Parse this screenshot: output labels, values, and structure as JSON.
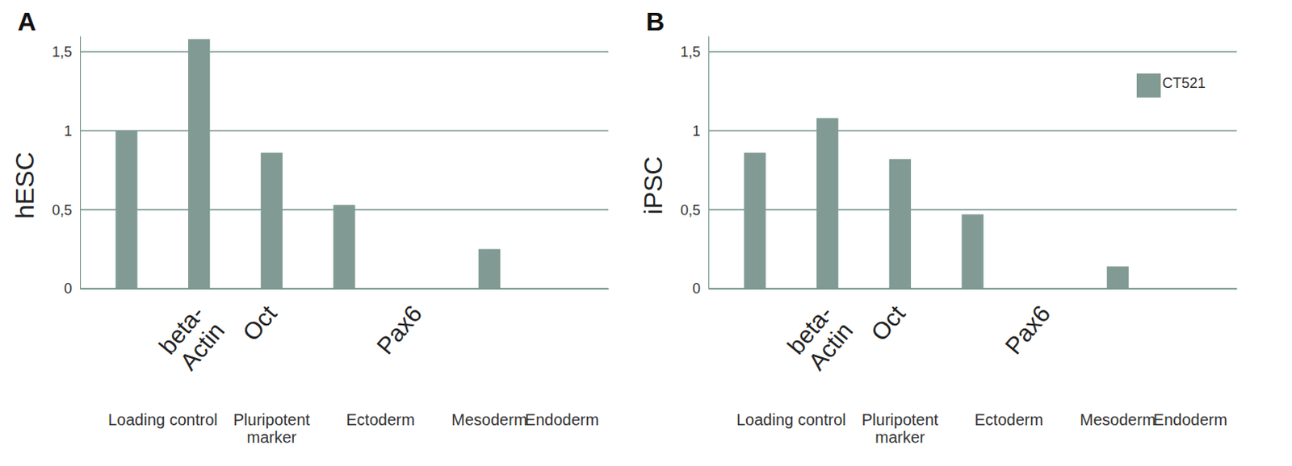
{
  "chart_data": [
    {
      "type": "bar",
      "title": "A",
      "y_label": "hESC",
      "categories": [
        null,
        "beta-\nActin",
        "Oct",
        null,
        "Pax6",
        null,
        null
      ],
      "category_groups": [
        "Loading control",
        "Loading control",
        "Pluripotent\nmarker",
        "Ectoderm",
        "Ectoderm",
        "Mesoderm",
        "Endoderm"
      ],
      "values": [
        1.0,
        1.58,
        0.86,
        0.53,
        0,
        0.25,
        0
      ],
      "color": "#819b94",
      "ylim": [
        0,
        1.6
      ],
      "yticks": [
        0,
        {
          "value": 0.5,
          "label": "0,5"
        },
        1,
        {
          "value": 1.5,
          "label": "1,5"
        }
      ],
      "grid": true
    },
    {
      "type": "bar",
      "title": "B",
      "y_label": "iPSC",
      "categories": [
        null,
        "beta-\nActin",
        "Oct",
        null,
        "Pax6",
        null,
        null
      ],
      "category_groups": [
        "Loading control",
        "Loading control",
        "Pluripotent\nmarker",
        "Ectoderm",
        "Ectoderm",
        "Mesoderm",
        "Endoderm"
      ],
      "series": [
        {
          "name": "CT521",
          "color": "#819b94",
          "values": [
            0.86,
            1.08,
            0.82,
            0.47,
            0,
            0.14,
            0
          ]
        }
      ],
      "ylim": [
        0,
        1.6
      ],
      "yticks": [
        0,
        {
          "value": 0.5,
          "label": "0,5"
        },
        1,
        {
          "value": 1.5,
          "label": "1,5"
        }
      ],
      "grid": true,
      "legend": "top-right"
    }
  ]
}
